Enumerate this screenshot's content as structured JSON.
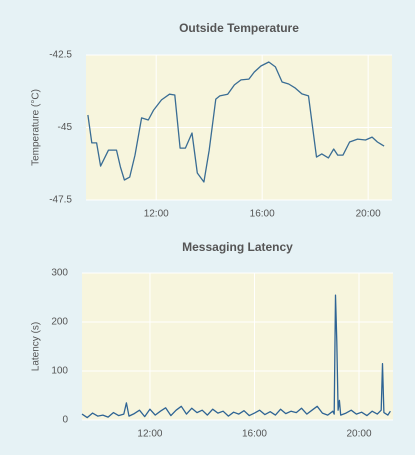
{
  "chart_data": [
    {
      "type": "line",
      "title": "Outside Temperature",
      "y_label": "Temperature (°C)",
      "color": "#3a6d94",
      "grid": true,
      "xlim": [
        9.35,
        20.9
      ],
      "xticks": [
        {
          "value": 12,
          "label": "12:00"
        },
        {
          "value": 16,
          "label": "16:00"
        },
        {
          "value": 20,
          "label": "20:00"
        }
      ],
      "ylim": [
        -47.5,
        -42.5
      ],
      "yticks": [
        -47.5,
        -45,
        -42.5
      ],
      "x": [
        9.42,
        9.57,
        9.75,
        9.9,
        10.2,
        10.5,
        10.65,
        10.8,
        11.0,
        11.2,
        11.45,
        11.7,
        11.9,
        12.2,
        12.5,
        12.7,
        12.9,
        13.1,
        13.35,
        13.55,
        13.8,
        14.0,
        14.25,
        14.4,
        14.7,
        14.95,
        15.2,
        15.5,
        15.7,
        15.95,
        16.25,
        16.5,
        16.75,
        17.0,
        17.25,
        17.5,
        17.75,
        18.05,
        18.25,
        18.5,
        18.7,
        18.85,
        19.05,
        19.3,
        19.6,
        19.9,
        20.15,
        20.35,
        20.6
      ],
      "values": [
        -44.57,
        -45.53,
        -45.53,
        -46.33,
        -45.78,
        -45.78,
        -46.36,
        -46.81,
        -46.71,
        -45.95,
        -44.67,
        -44.74,
        -44.4,
        -44.05,
        -43.85,
        -43.88,
        -45.71,
        -45.71,
        -45.19,
        -46.57,
        -46.88,
        -45.78,
        -44.02,
        -43.91,
        -43.85,
        -43.53,
        -43.36,
        -43.33,
        -43.09,
        -42.88,
        -42.74,
        -42.91,
        -43.43,
        -43.5,
        -43.64,
        -43.84,
        -43.91,
        -46.02,
        -45.91,
        -46.05,
        -45.74,
        -45.95,
        -45.95,
        -45.5,
        -45.4,
        -45.43,
        -45.33,
        -45.5,
        -45.64
      ]
    },
    {
      "type": "line",
      "title": "Messaging Latency",
      "y_label": "Latency (s)",
      "color": "#2f6494",
      "grid": true,
      "xlim": [
        9.4,
        21.3
      ],
      "xticks": [
        {
          "value": 12,
          "label": "12:00"
        },
        {
          "value": 16,
          "label": "16:00"
        },
        {
          "value": 20,
          "label": "20:00"
        }
      ],
      "ylim": [
        0,
        300
      ],
      "yticks": [
        0,
        100,
        200,
        300
      ],
      "x": [
        9.4,
        9.6,
        9.8,
        10.0,
        10.2,
        10.4,
        10.6,
        10.8,
        11.0,
        11.1,
        11.2,
        11.4,
        11.6,
        11.8,
        12.0,
        12.2,
        12.4,
        12.6,
        12.8,
        13.0,
        13.2,
        13.4,
        13.6,
        13.8,
        14.0,
        14.2,
        14.4,
        14.6,
        14.8,
        15.0,
        15.2,
        15.4,
        15.6,
        15.8,
        16.0,
        16.2,
        16.4,
        16.6,
        16.8,
        17.0,
        17.2,
        17.4,
        17.6,
        17.8,
        18.0,
        18.2,
        18.4,
        18.6,
        18.8,
        19.0,
        19.05,
        19.1,
        19.15,
        19.2,
        19.25,
        19.3,
        19.5,
        19.7,
        19.9,
        20.1,
        20.3,
        20.5,
        20.7,
        20.85,
        20.9,
        20.95,
        21.1,
        21.2
      ],
      "values": [
        12,
        5,
        14,
        8,
        10,
        6,
        15,
        9,
        12,
        35,
        8,
        13,
        20,
        7,
        22,
        10,
        18,
        25,
        9,
        20,
        28,
        12,
        24,
        15,
        20,
        10,
        22,
        14,
        18,
        8,
        16,
        12,
        19,
        9,
        14,
        20,
        11,
        17,
        10,
        22,
        13,
        18,
        15,
        24,
        12,
        20,
        28,
        14,
        10,
        18,
        12,
        255,
        160,
        20,
        40,
        10,
        14,
        20,
        12,
        16,
        9,
        18,
        12,
        20,
        115,
        15,
        10,
        18
      ]
    }
  ]
}
